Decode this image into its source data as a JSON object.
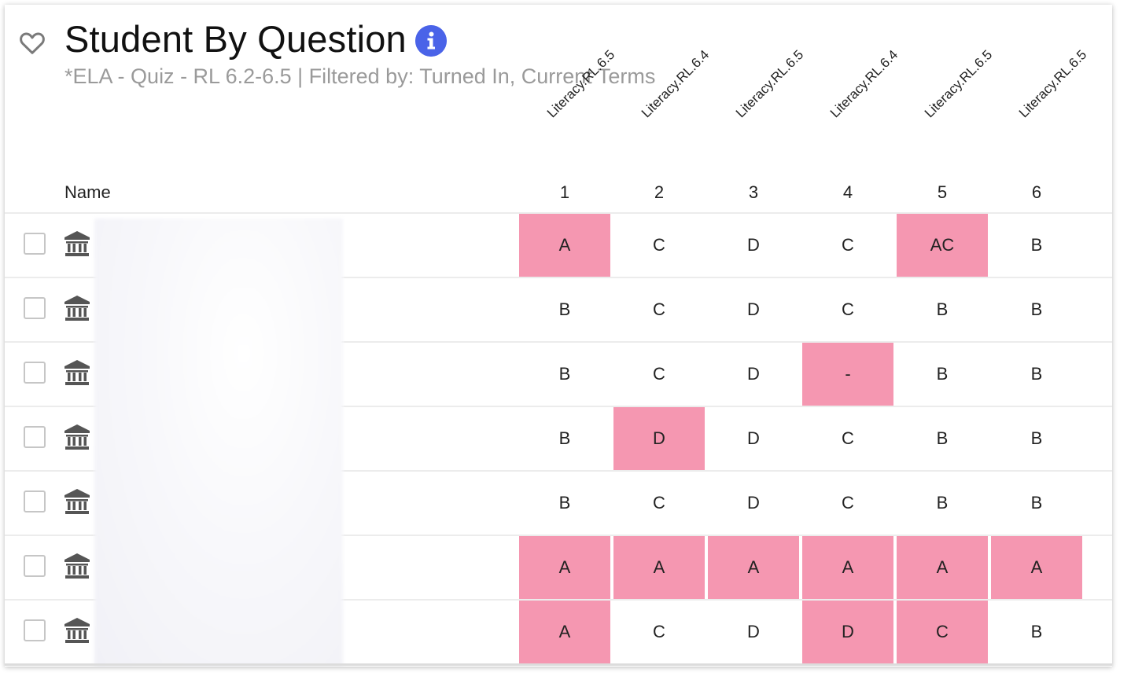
{
  "header": {
    "title": "Student By Question",
    "subtitle": "*ELA - Quiz - RL 6.2-6.5 | Filtered by: Turned In, Current Terms"
  },
  "icons": {
    "favorite": "heart-outline-icon",
    "info": "info-icon",
    "row": "institution-icon"
  },
  "colors": {
    "incorrect": "#f597b1",
    "info": "#4a63e8"
  },
  "table": {
    "name_header": "Name",
    "questions": [
      {
        "number": "1",
        "standard": "Literacy.RL.6.5"
      },
      {
        "number": "2",
        "standard": "Literacy.RL.6.4"
      },
      {
        "number": "3",
        "standard": "Literacy.RL.6.5"
      },
      {
        "number": "4",
        "standard": "Literacy.RL.6.4"
      },
      {
        "number": "5",
        "standard": "Literacy.RL.6.5"
      },
      {
        "number": "6",
        "standard": "Literacy.RL.6.5"
      }
    ],
    "rows": [
      {
        "answers": [
          "A",
          "C",
          "D",
          "C",
          "AC",
          "B"
        ],
        "incorrect": [
          true,
          false,
          false,
          false,
          true,
          false
        ]
      },
      {
        "answers": [
          "B",
          "C",
          "D",
          "C",
          "B",
          "B"
        ],
        "incorrect": [
          false,
          false,
          false,
          false,
          false,
          false
        ]
      },
      {
        "answers": [
          "B",
          "C",
          "D",
          "-",
          "B",
          "B"
        ],
        "incorrect": [
          false,
          false,
          false,
          true,
          false,
          false
        ]
      },
      {
        "answers": [
          "B",
          "D",
          "D",
          "C",
          "B",
          "B"
        ],
        "incorrect": [
          false,
          true,
          false,
          false,
          false,
          false
        ]
      },
      {
        "answers": [
          "B",
          "C",
          "D",
          "C",
          "B",
          "B"
        ],
        "incorrect": [
          false,
          false,
          false,
          false,
          false,
          false
        ]
      },
      {
        "answers": [
          "A",
          "A",
          "A",
          "A",
          "A",
          "A"
        ],
        "incorrect": [
          true,
          true,
          true,
          true,
          true,
          true
        ]
      },
      {
        "answers": [
          "A",
          "C",
          "D",
          "D",
          "C",
          "B"
        ],
        "incorrect": [
          true,
          false,
          false,
          true,
          true,
          false
        ]
      }
    ]
  }
}
